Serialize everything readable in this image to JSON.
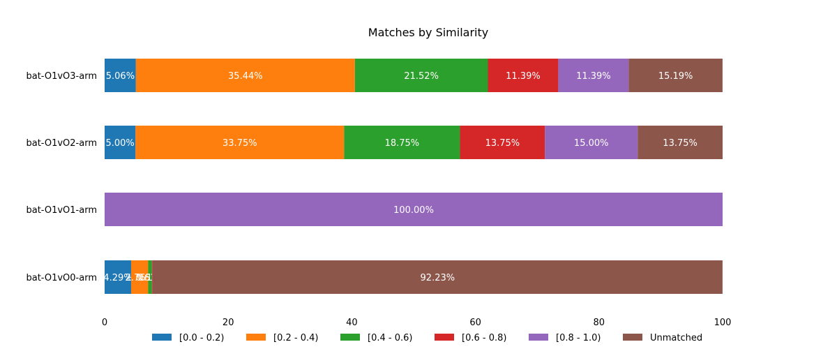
{
  "chart_data": {
    "type": "bar",
    "orientation": "horizontal",
    "stacked": true,
    "title": "Matches by Similarity",
    "xlabel": "",
    "ylabel": "",
    "xlim": [
      0,
      100
    ],
    "xticks": [
      "0",
      "20",
      "40",
      "60",
      "80",
      "100"
    ],
    "grid": false,
    "legend_position": "bottom",
    "categories": [
      "bat-O1vO3-arm",
      "bat-O1vO2-arm",
      "bat-O1vO1-arm",
      "bat-O1vO0-arm"
    ],
    "series": [
      {
        "name": "[0.0 - 0.2)",
        "color": "#1f77b4",
        "values": [
          5.06,
          5.0,
          0,
          4.29
        ],
        "labels": [
          "5.06%",
          "5.00%",
          "",
          "4.29%"
        ]
      },
      {
        "name": "[0.2 - 0.4)",
        "color": "#ff7f0e",
        "values": [
          35.44,
          33.75,
          0,
          2.76
        ],
        "labels": [
          "35.44%",
          "33.75%",
          "",
          "2.76%"
        ]
      },
      {
        "name": "[0.4 - 0.6)",
        "color": "#2ca02c",
        "values": [
          21.52,
          18.75,
          0,
          0.61
        ],
        "labels": [
          "21.52%",
          "18.75%",
          "",
          "0.61%"
        ]
      },
      {
        "name": "[0.6 - 0.8)",
        "color": "#d62728",
        "values": [
          11.39,
          13.75,
          0,
          0.1
        ],
        "labels": [
          "11.39%",
          "13.75%",
          "",
          "0.10%"
        ]
      },
      {
        "name": "[0.8 - 1.0)",
        "color": "#9467bd",
        "values": [
          11.39,
          15.0,
          100.0,
          0
        ],
        "labels": [
          "11.39%",
          "15.00%",
          "100.00%",
          ""
        ]
      },
      {
        "name": "Unmatched",
        "color": "#8c564b",
        "values": [
          15.19,
          13.75,
          0,
          92.23
        ],
        "labels": [
          "15.19%",
          "13.75%",
          "",
          "92.23%"
        ]
      }
    ]
  }
}
